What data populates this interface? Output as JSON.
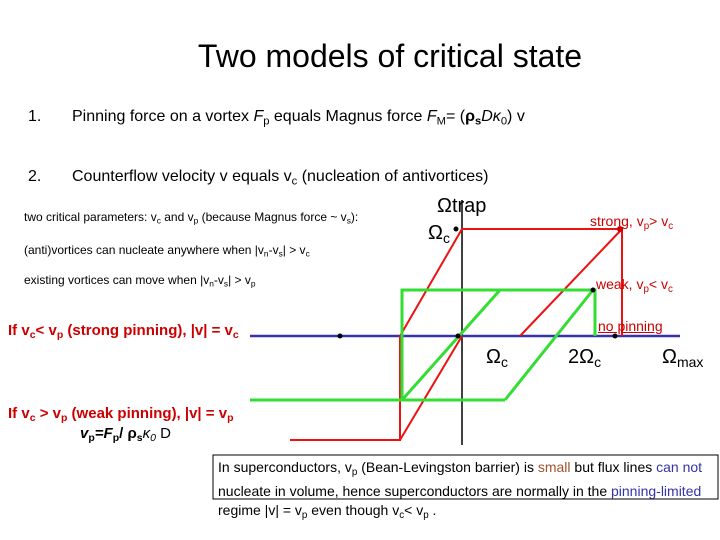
{
  "title": "Two models of critical state",
  "items": [
    {
      "number": "1.",
      "text": [
        "Pinning force on a vortex ",
        "F",
        "p",
        " equals Magnus force ",
        "F",
        "M",
        "= (",
        "ρ",
        "s",
        "Dκ",
        "0",
        ") v"
      ]
    },
    {
      "number": "2.",
      "text": [
        "Counterflow velocity v equals v",
        "c",
        " (nucleation of antivortices)"
      ]
    }
  ],
  "notes": [
    [
      "two critical parameters: v",
      "c",
      " and v",
      "p",
      " (because Magnus force ~ v",
      "s",
      "):"
    ],
    [
      "(anti)vortices can nucleate anywhere when |v",
      "n",
      "-v",
      "s",
      "| > v",
      "c"
    ],
    [
      "existing vortices can move when |v",
      "n",
      "-v",
      "s",
      "| > v",
      "p"
    ]
  ],
  "strong_case": [
    "If v",
    "c",
    "< v",
    "p",
    " (strong pinning), |v| = v",
    "c"
  ],
  "weak_case": [
    "If v",
    "c",
    " > v",
    "p",
    " (weak pinning), |v| = v",
    "p"
  ],
  "formula": [
    "v",
    "p",
    "=F",
    "p",
    "/ ",
    "ρ",
    "s",
    "κ",
    "0",
    " D"
  ],
  "diagram": {
    "omega_trap": [
      "Ω",
      "trap"
    ],
    "omega_c_left": [
      "Ω",
      "c"
    ],
    "strong": [
      "strong, v",
      "p",
      "> v",
      "c"
    ],
    "weak": [
      "weak, v",
      "p",
      "< v",
      "c"
    ],
    "no_pinning": "no pinning",
    "omega_c": [
      "Ω",
      "c"
    ],
    "two_omega_c": [
      "2Ω",
      "c"
    ],
    "omega_max": [
      "Ω",
      "max"
    ]
  },
  "footer": [
    "In superconductors, v",
    "p",
    " (Bean-Levingston barrier) is ",
    "small",
    " but flux lines ",
    "can not",
    " nucleate in volume, hence superconductors are normally in the ",
    "pinning-limited",
    " regime |v| = v",
    "p",
    " even though v",
    "c",
    "< v",
    "p",
    " ."
  ]
}
